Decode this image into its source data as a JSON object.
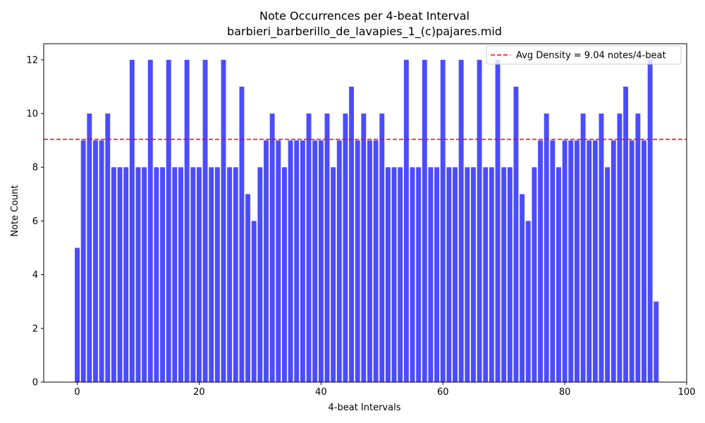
{
  "chart_data": {
    "type": "bar",
    "title": "Note Occurrences per 4-beat Interval",
    "subtitle": "barbieri_barberillo_de_lavapies_1_(c)pajares.mid",
    "xlabel": "4-beat Intervals",
    "ylabel": "Note Count",
    "xlim": [
      -5.5,
      100
    ],
    "ylim": [
      0,
      12.6
    ],
    "xticks": [
      0,
      20,
      40,
      60,
      80,
      100
    ],
    "yticks": [
      0,
      2,
      4,
      6,
      8,
      10,
      12
    ],
    "grid": false,
    "bar_color": "#0000ff",
    "bar_alpha": 0.7,
    "x": [
      0,
      1,
      2,
      3,
      4,
      5,
      6,
      7,
      8,
      9,
      10,
      11,
      12,
      13,
      14,
      15,
      16,
      17,
      18,
      19,
      20,
      21,
      22,
      23,
      24,
      25,
      26,
      27,
      28,
      29,
      30,
      31,
      32,
      33,
      34,
      35,
      36,
      37,
      38,
      39,
      40,
      41,
      42,
      43,
      44,
      45,
      46,
      47,
      48,
      49,
      50,
      51,
      52,
      53,
      54,
      55,
      56,
      57,
      58,
      59,
      60,
      61,
      62,
      63,
      64,
      65,
      66,
      67,
      68,
      69,
      70,
      71,
      72,
      73,
      74,
      75,
      76,
      77,
      78,
      79,
      80,
      81,
      82,
      83,
      84,
      85,
      86,
      87,
      88,
      89,
      90,
      91,
      92,
      93,
      94,
      95
    ],
    "values": [
      5,
      9,
      10,
      9,
      9,
      10,
      8,
      8,
      8,
      12,
      8,
      8,
      12,
      8,
      8,
      12,
      8,
      8,
      12,
      8,
      8,
      12,
      8,
      8,
      12,
      8,
      8,
      11,
      7,
      6,
      8,
      9,
      10,
      9,
      8,
      9,
      9,
      9,
      10,
      9,
      9,
      10,
      8,
      9,
      10,
      11,
      9,
      10,
      9,
      9,
      10,
      8,
      8,
      8,
      12,
      8,
      8,
      12,
      8,
      8,
      12,
      8,
      8,
      12,
      8,
      8,
      12,
      8,
      8,
      12,
      8,
      8,
      11,
      7,
      6,
      8,
      9,
      10,
      9,
      8,
      9,
      9,
      9,
      10,
      9,
      9,
      10,
      8,
      9,
      10,
      11,
      9,
      10,
      9,
      12,
      3
    ],
    "reference_line": {
      "value": 9.04,
      "color": "#ff0000",
      "style": "dashed",
      "label": "Avg Density = 9.04 notes/4-beat"
    },
    "legend_position": "top-right"
  }
}
